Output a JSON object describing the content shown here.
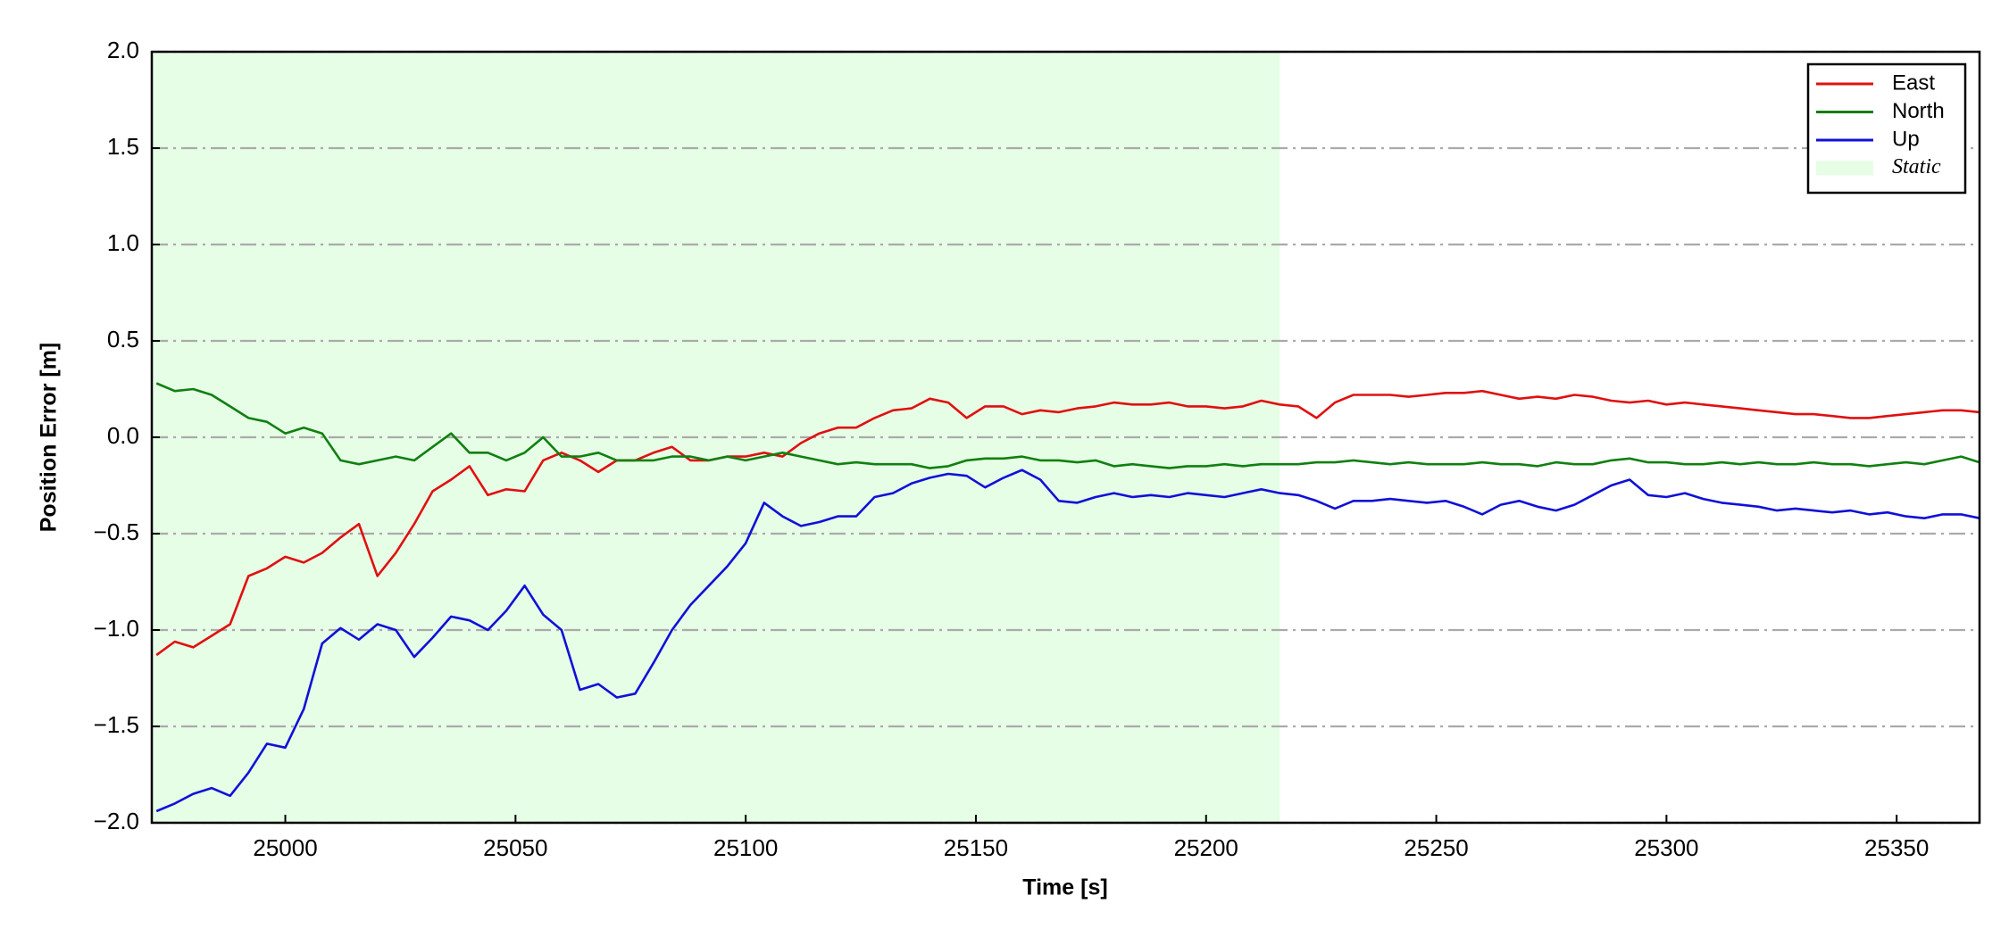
{
  "chart_data": {
    "type": "line",
    "xlabel": "Time [s]",
    "ylabel": "Position Error [m]",
    "xlim": [
      24971,
      25368
    ],
    "ylim": [
      -2.0,
      2.0
    ],
    "xticks": [
      25000,
      25050,
      25100,
      25150,
      25200,
      25250,
      25300,
      25350
    ],
    "yticks": [
      {
        "value": -2.0,
        "label": "−2.0"
      },
      {
        "value": -1.5,
        "label": "−1.5"
      },
      {
        "value": -1.0,
        "label": "−1.0"
      },
      {
        "value": -0.5,
        "label": "−0.5"
      },
      {
        "value": 0.0,
        "label": "0.0"
      },
      {
        "value": 0.5,
        "label": "0.5"
      },
      {
        "value": 1.0,
        "label": "1.0"
      },
      {
        "value": 1.5,
        "label": "1.5"
      },
      {
        "value": 2.0,
        "label": "2.0"
      }
    ],
    "grid": true,
    "legend": "upper right",
    "span": [
      24971,
      25216
    ],
    "span_label": "Static",
    "span_color": "#e6fde6",
    "x": [
      24972,
      24976,
      24980,
      24984,
      24988,
      24992,
      24996,
      25000,
      25004,
      25008,
      25012,
      25016,
      25020,
      25024,
      25028,
      25032,
      25036,
      25040,
      25044,
      25048,
      25052,
      25056,
      25060,
      25064,
      25068,
      25072,
      25076,
      25080,
      25084,
      25088,
      25092,
      25096,
      25100,
      25104,
      25108,
      25112,
      25116,
      25120,
      25124,
      25128,
      25132,
      25136,
      25140,
      25144,
      25148,
      25152,
      25156,
      25160,
      25164,
      25168,
      25172,
      25176,
      25180,
      25184,
      25188,
      25192,
      25196,
      25200,
      25204,
      25208,
      25212,
      25216,
      25220,
      25224,
      25228,
      25232,
      25236,
      25240,
      25244,
      25248,
      25252,
      25256,
      25260,
      25264,
      25268,
      25272,
      25276,
      25280,
      25284,
      25288,
      25292,
      25296,
      25300,
      25304,
      25308,
      25312,
      25316,
      25320,
      25324,
      25328,
      25332,
      25336,
      25340,
      25344,
      25348,
      25352,
      25356,
      25360,
      25364,
      25368
    ],
    "series": [
      {
        "name": "East",
        "color": "#e01010",
        "values": [
          -1.13,
          -1.06,
          -1.09,
          -1.03,
          -0.97,
          -0.72,
          -0.68,
          -0.62,
          -0.65,
          -0.6,
          -0.52,
          -0.45,
          -0.72,
          -0.6,
          -0.45,
          -0.28,
          -0.22,
          -0.15,
          -0.3,
          -0.27,
          -0.28,
          -0.12,
          -0.08,
          -0.12,
          -0.18,
          -0.12,
          -0.12,
          -0.08,
          -0.05,
          -0.12,
          -0.12,
          -0.1,
          -0.1,
          -0.08,
          -0.1,
          -0.03,
          0.02,
          0.05,
          0.05,
          0.1,
          0.14,
          0.15,
          0.2,
          0.18,
          0.1,
          0.16,
          0.16,
          0.12,
          0.14,
          0.13,
          0.15,
          0.16,
          0.18,
          0.17,
          0.17,
          0.18,
          0.16,
          0.16,
          0.15,
          0.16,
          0.19,
          0.17,
          0.16,
          0.1,
          0.18,
          0.22,
          0.22,
          0.22,
          0.21,
          0.22,
          0.23,
          0.23,
          0.24,
          0.22,
          0.2,
          0.21,
          0.2,
          0.22,
          0.21,
          0.19,
          0.18,
          0.19,
          0.17,
          0.18,
          0.17,
          0.16,
          0.15,
          0.14,
          0.13,
          0.12,
          0.12,
          0.11,
          0.1,
          0.1,
          0.11,
          0.12,
          0.13,
          0.14,
          0.14,
          0.13
        ]
      },
      {
        "name": "North",
        "color": "#108010",
        "values": [
          0.28,
          0.24,
          0.25,
          0.22,
          0.16,
          0.1,
          0.08,
          0.02,
          0.05,
          0.02,
          -0.12,
          -0.14,
          -0.12,
          -0.1,
          -0.12,
          -0.05,
          0.02,
          -0.08,
          -0.08,
          -0.12,
          -0.08,
          0,
          -0.1,
          -0.1,
          -0.08,
          -0.12,
          -0.12,
          -0.12,
          -0.1,
          -0.1,
          -0.12,
          -0.1,
          -0.12,
          -0.1,
          -0.08,
          -0.1,
          -0.12,
          -0.14,
          -0.13,
          -0.14,
          -0.14,
          -0.14,
          -0.16,
          -0.15,
          -0.12,
          -0.11,
          -0.11,
          -0.1,
          -0.12,
          -0.12,
          -0.13,
          -0.12,
          -0.15,
          -0.14,
          -0.15,
          -0.16,
          -0.15,
          -0.15,
          -0.14,
          -0.15,
          -0.14,
          -0.14,
          -0.14,
          -0.13,
          -0.13,
          -0.12,
          -0.13,
          -0.14,
          -0.13,
          -0.14,
          -0.14,
          -0.14,
          -0.13,
          -0.14,
          -0.14,
          -0.15,
          -0.13,
          -0.14,
          -0.14,
          -0.12,
          -0.11,
          -0.13,
          -0.13,
          -0.14,
          -0.14,
          -0.13,
          -0.14,
          -0.13,
          -0.14,
          -0.14,
          -0.13,
          -0.14,
          -0.14,
          -0.15,
          -0.14,
          -0.13,
          -0.14,
          -0.12,
          -0.1,
          -0.13
        ]
      },
      {
        "name": "Up",
        "color": "#1010d8",
        "values": [
          -1.94,
          -1.9,
          -1.85,
          -1.82,
          -1.86,
          -1.74,
          -1.59,
          -1.61,
          -1.41,
          -1.07,
          -0.99,
          -1.05,
          -0.97,
          -1.0,
          -1.14,
          -1.04,
          -0.93,
          -0.95,
          -1.0,
          -0.9,
          -0.77,
          -0.92,
          -1.0,
          -1.31,
          -1.28,
          -1.35,
          -1.33,
          -1.17,
          -1.0,
          -0.87,
          -0.77,
          -0.67,
          -0.55,
          -0.34,
          -0.41,
          -0.46,
          -0.44,
          -0.41,
          -0.41,
          -0.31,
          -0.29,
          -0.24,
          -0.21,
          -0.19,
          -0.2,
          -0.26,
          -0.21,
          -0.17,
          -0.22,
          -0.33,
          -0.34,
          -0.31,
          -0.29,
          -0.31,
          -0.3,
          -0.31,
          -0.29,
          -0.3,
          -0.31,
          -0.29,
          -0.27,
          -0.29,
          -0.3,
          -0.33,
          -0.37,
          -0.33,
          -0.33,
          -0.32,
          -0.33,
          -0.34,
          -0.33,
          -0.36,
          -0.4,
          -0.35,
          -0.33,
          -0.36,
          -0.38,
          -0.35,
          -0.3,
          -0.25,
          -0.22,
          -0.3,
          -0.31,
          -0.29,
          -0.32,
          -0.34,
          -0.35,
          -0.36,
          -0.38,
          -0.37,
          -0.38,
          -0.39,
          -0.38,
          -0.4,
          -0.39,
          -0.41,
          -0.42,
          -0.4,
          -0.4,
          -0.42
        ]
      }
    ]
  }
}
